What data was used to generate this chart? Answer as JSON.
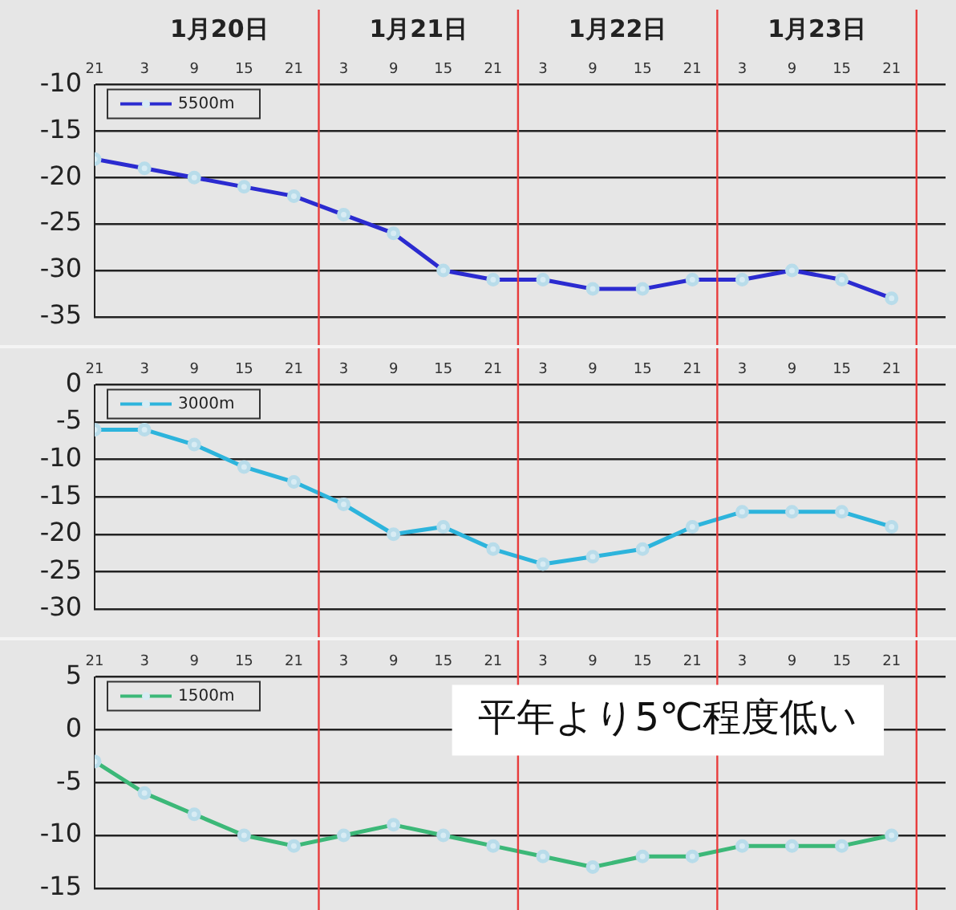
{
  "chart_data": [
    {
      "type": "line",
      "x": [
        "--01-19T21:00",
        "--01-20T03:00",
        "--01-20T09:00",
        "--01-20T15:00",
        "--01-20T21:00",
        "--01-21T03:00",
        "--01-21T09:00",
        "--01-21T15:00",
        "--01-21T21:00",
        "--01-22T03:00",
        "--01-22T09:00",
        "--01-22T15:00",
        "--01-22T21:00",
        "--01-23T03:00",
        "--01-23T09:00",
        "--01-23T15:00",
        "--01-23T21:00"
      ],
      "series": [
        {
          "name": "5500m",
          "color": "#2b2bd0",
          "values": [
            -18,
            -19,
            -20,
            -21,
            -22,
            -24,
            -26,
            -30,
            -31,
            -31,
            -32,
            -32,
            -31,
            -31,
            -30,
            -31,
            -33
          ]
        }
      ],
      "xlim": [
        "--01-19T21:00",
        "--01-24T03:30"
      ],
      "xticks": [
        {
          "value": "--01-19T21:00",
          "label": "21"
        },
        {
          "value": "--01-20T03:00",
          "label": "3"
        },
        {
          "value": "--01-20T09:00",
          "label": "9"
        },
        {
          "value": "--01-20T15:00",
          "label": "15"
        },
        {
          "value": "--01-20T21:00",
          "label": "21"
        },
        {
          "value": "--01-21T03:00",
          "label": "3"
        },
        {
          "value": "--01-21T09:00",
          "label": "9"
        },
        {
          "value": "--01-21T15:00",
          "label": "15"
        },
        {
          "value": "--01-21T21:00",
          "label": "21"
        },
        {
          "value": "--01-22T03:00",
          "label": "3"
        },
        {
          "value": "--01-22T09:00",
          "label": "9"
        },
        {
          "value": "--01-22T15:00",
          "label": "15"
        },
        {
          "value": "--01-22T21:00",
          "label": "21"
        },
        {
          "value": "--01-23T03:00",
          "label": "3"
        },
        {
          "value": "--01-23T09:00",
          "label": "9"
        },
        {
          "value": "--01-23T15:00",
          "label": "15"
        },
        {
          "value": "--01-23T21:00",
          "label": "21"
        }
      ],
      "x2lim": [
        "--01-19T21:00",
        "--01-24T03:30"
      ],
      "x2ticks": [
        {
          "value": "--01-20T12:00",
          "label": "1月20日"
        },
        {
          "value": "--01-21T12:00",
          "label": "1月21日"
        },
        {
          "value": "--01-22T12:00",
          "label": "1月22日"
        },
        {
          "value": "--01-23T12:00",
          "label": "1月23日"
        }
      ],
      "ylim": [
        -35,
        -10
      ],
      "yticks": [
        -10,
        -15,
        -20,
        -25,
        -30,
        -35
      ],
      "grid": "y",
      "legend": "top left",
      "marker": "circle",
      "ref_lines": [
        {
          "axis": "x",
          "value": "--01-21T00:00",
          "color": "#e83c3c"
        },
        {
          "axis": "x",
          "value": "--01-22T00:00",
          "color": "#e83c3c"
        },
        {
          "axis": "x",
          "value": "--01-23T00:00",
          "color": "#e83c3c"
        },
        {
          "axis": "x",
          "value": "--01-24T00:00",
          "color": "#e83c3c"
        }
      ]
    },
    {
      "type": "line",
      "x": [
        "--01-19T21:00",
        "--01-20T03:00",
        "--01-20T09:00",
        "--01-20T15:00",
        "--01-20T21:00",
        "--01-21T03:00",
        "--01-21T09:00",
        "--01-21T15:00",
        "--01-21T21:00",
        "--01-22T03:00",
        "--01-22T09:00",
        "--01-22T15:00",
        "--01-22T21:00",
        "--01-23T03:00",
        "--01-23T09:00",
        "--01-23T15:00",
        "--01-23T21:00"
      ],
      "series": [
        {
          "name": "3000m",
          "color": "#2db4dc",
          "values": [
            -6,
            -6,
            -8,
            -11,
            -13,
            -16,
            -20,
            -19,
            -22,
            -24,
            -23,
            -22,
            -19,
            -17,
            -17,
            -17,
            -19
          ]
        }
      ],
      "xlim": [
        "--01-19T21:00",
        "--01-24T03:30"
      ],
      "xticks": [
        {
          "value": "--01-19T21:00",
          "label": "21"
        },
        {
          "value": "--01-20T03:00",
          "label": "3"
        },
        {
          "value": "--01-20T09:00",
          "label": "9"
        },
        {
          "value": "--01-20T15:00",
          "label": "15"
        },
        {
          "value": "--01-20T21:00",
          "label": "21"
        },
        {
          "value": "--01-21T03:00",
          "label": "3"
        },
        {
          "value": "--01-21T09:00",
          "label": "9"
        },
        {
          "value": "--01-21T15:00",
          "label": "15"
        },
        {
          "value": "--01-21T21:00",
          "label": "21"
        },
        {
          "value": "--01-22T03:00",
          "label": "3"
        },
        {
          "value": "--01-22T09:00",
          "label": "9"
        },
        {
          "value": "--01-22T15:00",
          "label": "15"
        },
        {
          "value": "--01-22T21:00",
          "label": "21"
        },
        {
          "value": "--01-23T03:00",
          "label": "3"
        },
        {
          "value": "--01-23T09:00",
          "label": "9"
        },
        {
          "value": "--01-23T15:00",
          "label": "15"
        },
        {
          "value": "--01-23T21:00",
          "label": "21"
        }
      ],
      "ylim": [
        -30,
        0
      ],
      "yticks": [
        0,
        -5,
        -10,
        -15,
        -20,
        -25,
        -30
      ],
      "grid": "y",
      "legend": "top left",
      "marker": "circle",
      "ref_lines": [
        {
          "axis": "x",
          "value": "--01-21T00:00",
          "color": "#e83c3c"
        },
        {
          "axis": "x",
          "value": "--01-22T00:00",
          "color": "#e83c3c"
        },
        {
          "axis": "x",
          "value": "--01-23T00:00",
          "color": "#e83c3c"
        },
        {
          "axis": "x",
          "value": "--01-24T00:00",
          "color": "#e83c3c"
        }
      ]
    },
    {
      "type": "line",
      "x": [
        "--01-19T21:00",
        "--01-20T03:00",
        "--01-20T09:00",
        "--01-20T15:00",
        "--01-20T21:00",
        "--01-21T03:00",
        "--01-21T09:00",
        "--01-21T15:00",
        "--01-21T21:00",
        "--01-22T03:00",
        "--01-22T09:00",
        "--01-22T15:00",
        "--01-22T21:00",
        "--01-23T03:00",
        "--01-23T09:00",
        "--01-23T15:00",
        "--01-23T21:00"
      ],
      "series": [
        {
          "name": "1500m",
          "color": "#3cb878",
          "values": [
            -3,
            -6,
            -8,
            -10,
            -11,
            -10,
            -9,
            -10,
            -11,
            -12,
            -13,
            -12,
            -12,
            -11,
            -11,
            -11,
            -10
          ]
        }
      ],
      "xlim": [
        "--01-19T21:00",
        "--01-24T03:30"
      ],
      "xticks": [
        {
          "value": "--01-19T21:00",
          "label": "21"
        },
        {
          "value": "--01-20T03:00",
          "label": "3"
        },
        {
          "value": "--01-20T09:00",
          "label": "9"
        },
        {
          "value": "--01-20T15:00",
          "label": "15"
        },
        {
          "value": "--01-20T21:00",
          "label": "21"
        },
        {
          "value": "--01-21T03:00",
          "label": "3"
        },
        {
          "value": "--01-21T09:00",
          "label": "9"
        },
        {
          "value": "--01-21T15:00",
          "label": "15"
        },
        {
          "value": "--01-21T21:00",
          "label": "21"
        },
        {
          "value": "--01-22T03:00",
          "label": "3"
        },
        {
          "value": "--01-22T09:00",
          "label": "9"
        },
        {
          "value": "--01-22T15:00",
          "label": "15"
        },
        {
          "value": "--01-22T21:00",
          "label": "21"
        },
        {
          "value": "--01-23T03:00",
          "label": "3"
        },
        {
          "value": "--01-23T09:00",
          "label": "9"
        },
        {
          "value": "--01-23T15:00",
          "label": "15"
        },
        {
          "value": "--01-23T21:00",
          "label": "21"
        }
      ],
      "ylim": [
        -15,
        5
      ],
      "yticks": [
        5,
        0,
        -5,
        -10,
        -15
      ],
      "grid": "y",
      "legend": "top left",
      "marker": "circle",
      "ref_lines": [
        {
          "axis": "x",
          "value": "--01-21T00:00",
          "color": "#e83c3c"
        },
        {
          "axis": "x",
          "value": "--01-22T00:00",
          "color": "#e83c3c"
        },
        {
          "axis": "x",
          "value": "--01-23T00:00",
          "color": "#e83c3c"
        },
        {
          "axis": "x",
          "value": "--01-24T00:00",
          "color": "#e83c3c"
        }
      ],
      "annotations": [
        "平年より5℃程度低い"
      ]
    }
  ]
}
